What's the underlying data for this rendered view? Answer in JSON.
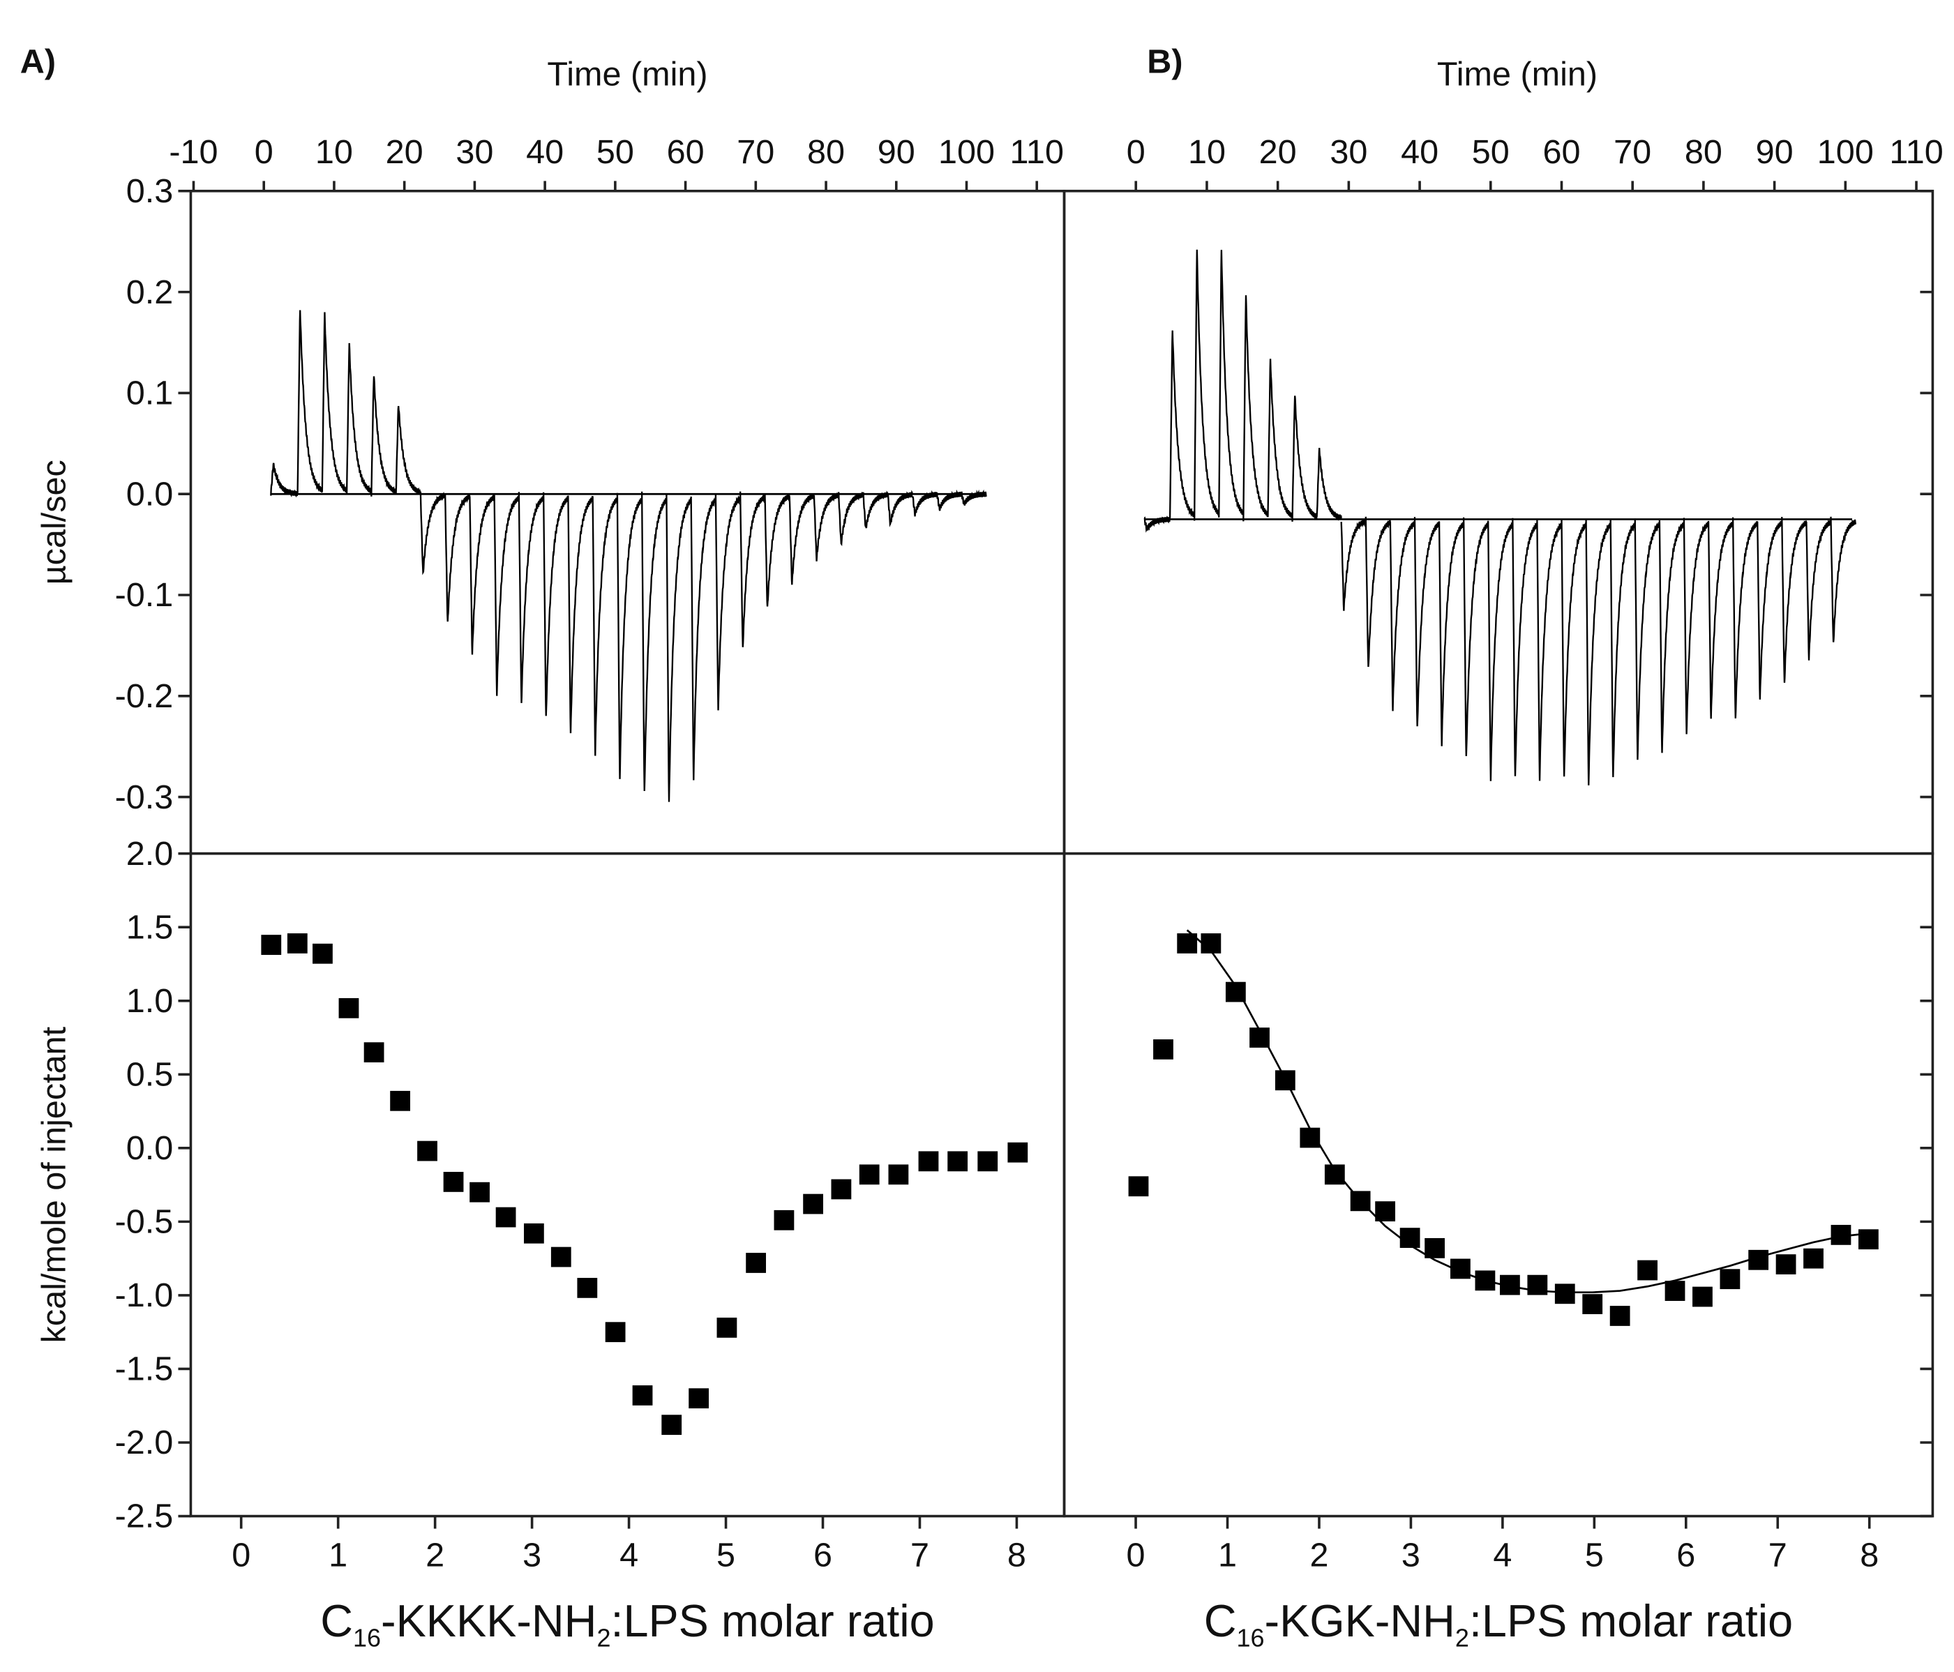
{
  "chart_data": [
    {
      "type": "thermogram",
      "panel_label": "A)",
      "xlabel": "Time (min)",
      "ylabel": "µcal/sec",
      "color": "#000000",
      "x": [
        1,
        4.8,
        8.3,
        11.8,
        15.3,
        18.8,
        22.3,
        25.8,
        29.3,
        32.8,
        36.3,
        39.8,
        43.3,
        46.8,
        50.3,
        53.8,
        57.3,
        60.8,
        64.3,
        67.8,
        71.3,
        74.8,
        78.3,
        81.8,
        85.3,
        88.8,
        92.3,
        95.8,
        99.3
      ],
      "values": [
        0.03,
        0.185,
        0.18,
        0.15,
        0.12,
        0.09,
        -0.08,
        -0.13,
        -0.16,
        -0.2,
        -0.21,
        -0.225,
        -0.24,
        -0.26,
        -0.285,
        -0.3,
        -0.31,
        -0.285,
        -0.215,
        -0.155,
        -0.115,
        -0.09,
        -0.065,
        -0.05,
        -0.035,
        -0.03,
        -0.02,
        -0.015,
        -0.01
      ],
      "baseline": 0,
      "xlim": [
        -10.4,
        113.9
      ],
      "xticks": [
        -10,
        0,
        10,
        20,
        30,
        40,
        50,
        60,
        70,
        80,
        90,
        100,
        110
      ],
      "ylim": [
        -0.356,
        0.3
      ],
      "yticks": [
        0.3,
        0.2,
        0.1,
        {
          "value": 0,
          "label": "0.0"
        },
        -0.1,
        -0.2,
        -0.3
      ]
    },
    {
      "type": "thermogram",
      "panel_label": "B)",
      "xlabel": "Time (min)",
      "color": "#000000",
      "x": [
        1.2,
        4.8,
        8.25,
        11.7,
        15.15,
        18.6,
        22.05,
        25.5,
        28.95,
        32.4,
        35.85,
        39.3,
        42.75,
        46.2,
        49.65,
        53.1,
        56.55,
        60,
        63.45,
        66.9,
        70.35,
        73.8,
        77.25,
        80.7,
        84.15,
        87.6,
        91.05,
        94.5,
        97.95
      ],
      "values": [
        -0.01,
        0.19,
        0.27,
        0.27,
        0.225,
        0.16,
        0.125,
        0.07,
        -0.09,
        -0.15,
        -0.19,
        -0.21,
        -0.225,
        -0.24,
        -0.26,
        -0.26,
        -0.26,
        -0.26,
        -0.265,
        -0.26,
        -0.24,
        -0.235,
        -0.215,
        -0.2,
        -0.2,
        -0.18,
        -0.165,
        -0.14,
        -0.125
      ],
      "baseline": -0.025,
      "xlim": [
        -10.1,
        112.3
      ],
      "xticks": [
        0,
        10,
        20,
        30,
        40,
        50,
        60,
        70,
        80,
        90,
        100,
        110
      ],
      "ylim": [
        -0.356,
        0.3
      ],
      "yticks": [
        0.3,
        0.2,
        0.1,
        0,
        -0.1,
        -0.2,
        -0.3
      ]
    },
    {
      "type": "scatter",
      "ylabel": "kcal/mole of injectant",
      "xlabel_parts": [
        "C",
        "16",
        "-KKKK-NH",
        "2",
        ":LPS molar ratio"
      ],
      "series": [
        {
          "marker": "square",
          "color": "#000000",
          "x": [
            0.31,
            0.58,
            0.84,
            1.11,
            1.37,
            1.64,
            1.92,
            2.19,
            2.46,
            2.73,
            3.02,
            3.3,
            3.57,
            3.86,
            4.14,
            4.44,
            4.72,
            5.01,
            5.31,
            5.6,
            5.9,
            6.19,
            6.48,
            6.78,
            7.09,
            7.39,
            7.7,
            8.01
          ],
          "values": [
            1.38,
            1.39,
            1.32,
            0.95,
            0.65,
            0.32,
            -0.02,
            -0.23,
            -0.3,
            -0.47,
            -0.58,
            -0.74,
            -0.95,
            -1.25,
            -1.68,
            -1.88,
            -1.7,
            -1.22,
            -0.78,
            -0.49,
            -0.38,
            -0.28,
            -0.18,
            -0.18,
            -0.09,
            -0.09,
            -0.09,
            -0.03
          ]
        }
      ],
      "xlim": [
        -0.52,
        8.49
      ],
      "xticks": [
        0,
        1,
        2,
        3,
        4,
        5,
        6,
        7,
        8
      ],
      "ylim": [
        -2.5,
        2.0
      ],
      "yticks": [
        {
          "value": 2,
          "label": "2.0"
        },
        1.5,
        {
          "value": 1,
          "label": "1.0"
        },
        0.5,
        {
          "value": 0,
          "label": "0.0"
        },
        -0.5,
        {
          "value": -1,
          "label": "-1.0"
        },
        -1.5,
        {
          "value": -2,
          "label": "-2.0"
        },
        -2.5
      ]
    },
    {
      "type": "scatter",
      "xlabel_parts": [
        "C",
        "16",
        "-KGK-NH",
        "2",
        ":LPS molar ratio"
      ],
      "series": [
        {
          "marker": "square",
          "color": "#000000",
          "x": [
            0.03,
            0.3,
            0.56,
            0.82,
            1.09,
            1.35,
            1.63,
            1.9,
            2.17,
            2.45,
            2.72,
            2.99,
            3.26,
            3.54,
            3.81,
            4.08,
            4.38,
            4.68,
            4.98,
            5.28,
            5.58,
            5.88,
            6.18,
            6.48,
            6.79,
            7.09,
            7.39,
            7.69,
            7.99
          ],
          "values": [
            -0.26,
            0.67,
            1.39,
            1.39,
            1.06,
            0.75,
            0.46,
            0.07,
            -0.18,
            -0.36,
            -0.43,
            -0.61,
            -0.68,
            -0.82,
            -0.9,
            -0.93,
            -0.93,
            -0.99,
            -1.06,
            -1.14,
            -0.83,
            -0.97,
            -1.01,
            -0.89,
            -0.76,
            -0.79,
            -0.75,
            -0.59,
            -0.62
          ]
        },
        {
          "marker": "line",
          "color": "#000000",
          "x": [
            0.56,
            0.82,
            1.09,
            1.35,
            1.63,
            1.9,
            2.17,
            2.45,
            2.72,
            2.99,
            3.26,
            3.54,
            3.81,
            4.08,
            4.38,
            4.68,
            4.98,
            5.28,
            5.58,
            5.88,
            6.18,
            6.48,
            6.79,
            7.09,
            7.39,
            7.69,
            7.99
          ],
          "values": [
            1.48,
            1.34,
            1.1,
            0.8,
            0.47,
            0.13,
            -0.15,
            -0.36,
            -0.53,
            -0.66,
            -0.76,
            -0.84,
            -0.9,
            -0.94,
            -0.97,
            -0.98,
            -0.98,
            -0.97,
            -0.94,
            -0.9,
            -0.85,
            -0.8,
            -0.74,
            -0.69,
            -0.64,
            -0.6,
            -0.58
          ]
        }
      ],
      "xlim": [
        -0.78,
        8.69
      ],
      "xticks": [
        0,
        1,
        2,
        3,
        4,
        5,
        6,
        7,
        8
      ],
      "ylim": [
        -2.5,
        2.0
      ],
      "yticks": [
        2,
        1.5,
        1,
        0.5,
        0,
        -0.5,
        -1,
        -1.5,
        -2,
        -2.5
      ]
    }
  ]
}
